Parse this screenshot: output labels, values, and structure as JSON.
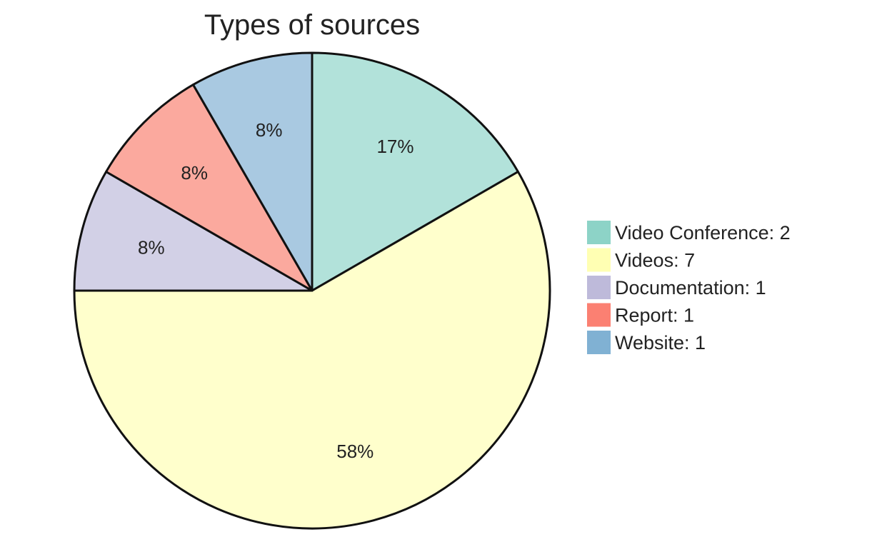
{
  "chart_data": {
    "type": "pie",
    "title": "Types of sources",
    "categories": [
      "Video Conference",
      "Videos",
      "Documentation",
      "Report",
      "Website"
    ],
    "values": [
      2,
      7,
      1,
      1,
      1
    ],
    "percent_labels": [
      "17%",
      "58%",
      "8%",
      "8%",
      "8%"
    ],
    "legend_labels": [
      "Video Conference: 2",
      "Videos: 7",
      "Documentation: 1",
      "Report: 1",
      "Website: 1"
    ],
    "slice_colors": [
      "#b2e2da",
      "#ffffcc",
      "#d2d0e6",
      "#fba99e",
      "#a9c9e1"
    ],
    "legend_colors": [
      "#8dd3c7",
      "#ffffb3",
      "#bebada",
      "#fb8072",
      "#80b1d3"
    ],
    "start": "12 o'clock",
    "direction": "clockwise",
    "legend_position": "right"
  }
}
